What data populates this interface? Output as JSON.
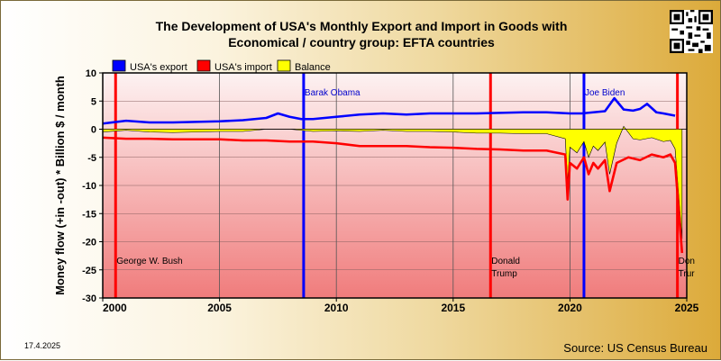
{
  "title_line1": "The Development of USA's Monthly Export and Import in Goods with",
  "title_line2": "Economical / country group: EFTA countries",
  "date_stamp": "17.4.2025",
  "source": "Source: US Census Bureau",
  "chart_data": {
    "type": "line",
    "ylabel": "Money flow (+in -out) * Billion $ / month",
    "xlabel": "",
    "xlim": [
      2000,
      2025
    ],
    "ylim": [
      -30,
      10
    ],
    "x_ticks": [
      2000,
      2005,
      2010,
      2015,
      2020,
      2025
    ],
    "y_ticks": [
      10,
      5,
      0,
      -5,
      -10,
      -15,
      -20,
      -25,
      -30
    ],
    "grid": true,
    "legend_position": "top",
    "legend": [
      {
        "label": "USA's export",
        "color": "#0000ff"
      },
      {
        "label": "USA's import",
        "color": "#ff0000"
      },
      {
        "label": "Balance",
        "color": "#ffff00"
      }
    ],
    "series": [
      {
        "name": "USA's export",
        "color": "#0000ff",
        "x": [
          2000,
          2001,
          2002,
          2003,
          2004,
          2005,
          2006,
          2007,
          2007.5,
          2008,
          2008.5,
          2009,
          2010,
          2011,
          2012,
          2013,
          2014,
          2015,
          2016,
          2017,
          2018,
          2019,
          2020,
          2020.5,
          2021,
          2021.5,
          2021.9,
          2022.3,
          2022.7,
          2023,
          2023.3,
          2023.7,
          2024,
          2024.5
        ],
        "y": [
          1.0,
          1.5,
          1.2,
          1.2,
          1.3,
          1.4,
          1.6,
          2.0,
          2.8,
          2.2,
          1.8,
          1.8,
          2.2,
          2.6,
          2.8,
          2.6,
          2.8,
          2.8,
          2.8,
          2.9,
          3.0,
          3.0,
          2.8,
          2.8,
          3.0,
          3.2,
          5.5,
          3.5,
          3.3,
          3.6,
          4.5,
          3.0,
          2.8,
          2.4
        ]
      },
      {
        "name": "USA's import",
        "color": "#ff0000",
        "x": [
          2000,
          2001,
          2002,
          2003,
          2004,
          2005,
          2006,
          2007,
          2008,
          2009,
          2010,
          2011,
          2012,
          2013,
          2014,
          2015,
          2016,
          2017,
          2018,
          2019,
          2019.8,
          2019.9,
          2020,
          2020.3,
          2020.6,
          2020.8,
          2021,
          2021.2,
          2021.5,
          2021.7,
          2022,
          2022.5,
          2023,
          2023.5,
          2024,
          2024.3,
          2024.5,
          2024.65,
          2024.8
        ],
        "y": [
          -1.5,
          -1.7,
          -1.7,
          -1.8,
          -1.8,
          -1.8,
          -2.0,
          -2.0,
          -2.2,
          -2.2,
          -2.5,
          -3.0,
          -3.0,
          -3.0,
          -3.2,
          -3.3,
          -3.5,
          -3.6,
          -3.8,
          -3.8,
          -4.5,
          -12.5,
          -6.0,
          -7.0,
          -5.0,
          -8.0,
          -6.0,
          -7.0,
          -5.5,
          -11.0,
          -6.0,
          -5.0,
          -5.5,
          -4.5,
          -5.0,
          -4.5,
          -6.0,
          -14.0,
          -22.0
        ]
      },
      {
        "name": "Balance",
        "color": "#ffff00",
        "x": [
          2000,
          2001,
          2002,
          2003,
          2004,
          2005,
          2006,
          2007,
          2008,
          2009,
          2010,
          2011,
          2012,
          2013,
          2014,
          2015,
          2016,
          2017,
          2018,
          2019,
          2019.8,
          2019.9,
          2020,
          2020.3,
          2020.6,
          2020.8,
          2021,
          2021.2,
          2021.5,
          2021.7,
          2022,
          2022.3,
          2022.7,
          2023,
          2023.5,
          2024,
          2024.3,
          2024.5,
          2024.65,
          2024.8
        ],
        "y": [
          -0.5,
          -0.2,
          -0.5,
          -0.6,
          -0.5,
          -0.4,
          -0.4,
          0.0,
          0.0,
          -0.4,
          -0.3,
          -0.4,
          -0.2,
          -0.4,
          -0.4,
          -0.5,
          -0.7,
          -0.7,
          -0.8,
          -0.8,
          -1.7,
          -9.5,
          -3.2,
          -4.2,
          -2.2,
          -5.0,
          -3.0,
          -3.8,
          -2.3,
          -8.0,
          -2.5,
          0.5,
          -1.7,
          -1.9,
          -1.5,
          -2.2,
          -2.0,
          -3.5,
          -11.5,
          -19.5
        ]
      }
    ],
    "events": [
      {
        "x": 2000.55,
        "color": "#ff0000",
        "label": [
          "George W. Bush"
        ],
        "label_pos": "bottom"
      },
      {
        "x": 2008.6,
        "color": "#0000ff",
        "label": [
          "Barak Obama"
        ],
        "label_pos": "top"
      },
      {
        "x": 2016.6,
        "color": "#ff0000",
        "label": [
          "Donald",
          "Trump"
        ],
        "label_pos": "bottom"
      },
      {
        "x": 2020.6,
        "color": "#0000ff",
        "label": [
          "Joe Biden"
        ],
        "label_pos": "top"
      },
      {
        "x": 2024.6,
        "color": "#ff0000",
        "label": [
          "Don",
          "Trur"
        ],
        "label_pos": "bottom"
      }
    ]
  }
}
